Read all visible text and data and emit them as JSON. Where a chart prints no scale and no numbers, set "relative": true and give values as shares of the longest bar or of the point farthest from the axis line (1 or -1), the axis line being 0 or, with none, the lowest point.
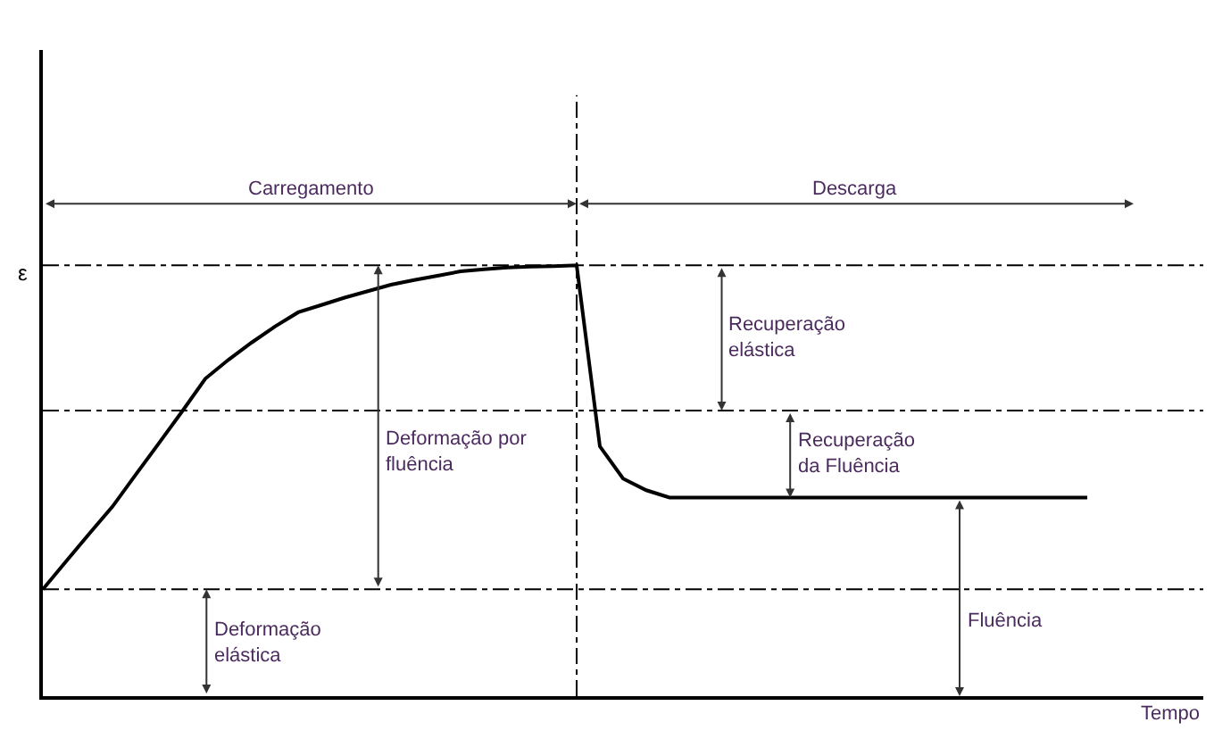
{
  "chart_data": {
    "type": "line",
    "relative": true,
    "xlabel": "Tempo",
    "ylabel": "ε",
    "marker": "none",
    "line_style": "solid",
    "categories": [
      null,
      null,
      null,
      null,
      null,
      null,
      null,
      null,
      null,
      null,
      null,
      null,
      null,
      null,
      null,
      null,
      null,
      null,
      null,
      null,
      null,
      null,
      null,
      null,
      null,
      null,
      null,
      null,
      null,
      null,
      null,
      null,
      null,
      null,
      null,
      null,
      null,
      null,
      null,
      null,
      null,
      null,
      null,
      null,
      null,
      null,
      null,
      null,
      null,
      null
    ],
    "series": [
      {
        "color": "#000000",
        "values": [
          0.248,
          0.313,
          0.377,
          0.44,
          0.514,
          0.587,
          0.661,
          0.737,
          0.781,
          0.821,
          0.858,
          0.891,
          0.908,
          0.925,
          0.94,
          0.955,
          0.966,
          0.976,
          0.986,
          0.991,
          0.995,
          0.997,
          0.998,
          1.0,
          0.58,
          0.505,
          0.478,
          0.461,
          0.461,
          0.461,
          0.461,
          0.461,
          0.461,
          0.461,
          0.461,
          0.461,
          0.461,
          0.461,
          0.461,
          0.461,
          0.461,
          0.461,
          0.461,
          0.461,
          0.461,
          0.461,
          null,
          null,
          null,
          null
        ]
      }
    ],
    "ref_lines": [
      {
        "axis": "y",
        "value": 1.0,
        "line_style": "dashed",
        "color": "#000000"
      },
      {
        "axis": "y",
        "value": 0.663,
        "line_style": "dashed",
        "color": "#000000"
      },
      {
        "axis": "y",
        "value": 0.248,
        "line_style": "dashed",
        "color": "#000000"
      }
    ],
    "annotations": [
      "Carregamento",
      "Descarga",
      "Recuperação\nelástica",
      "Deformação por\nfluência",
      "Recuperação\nda Fluência",
      "Fluência",
      "Deformação\nelástica"
    ]
  }
}
